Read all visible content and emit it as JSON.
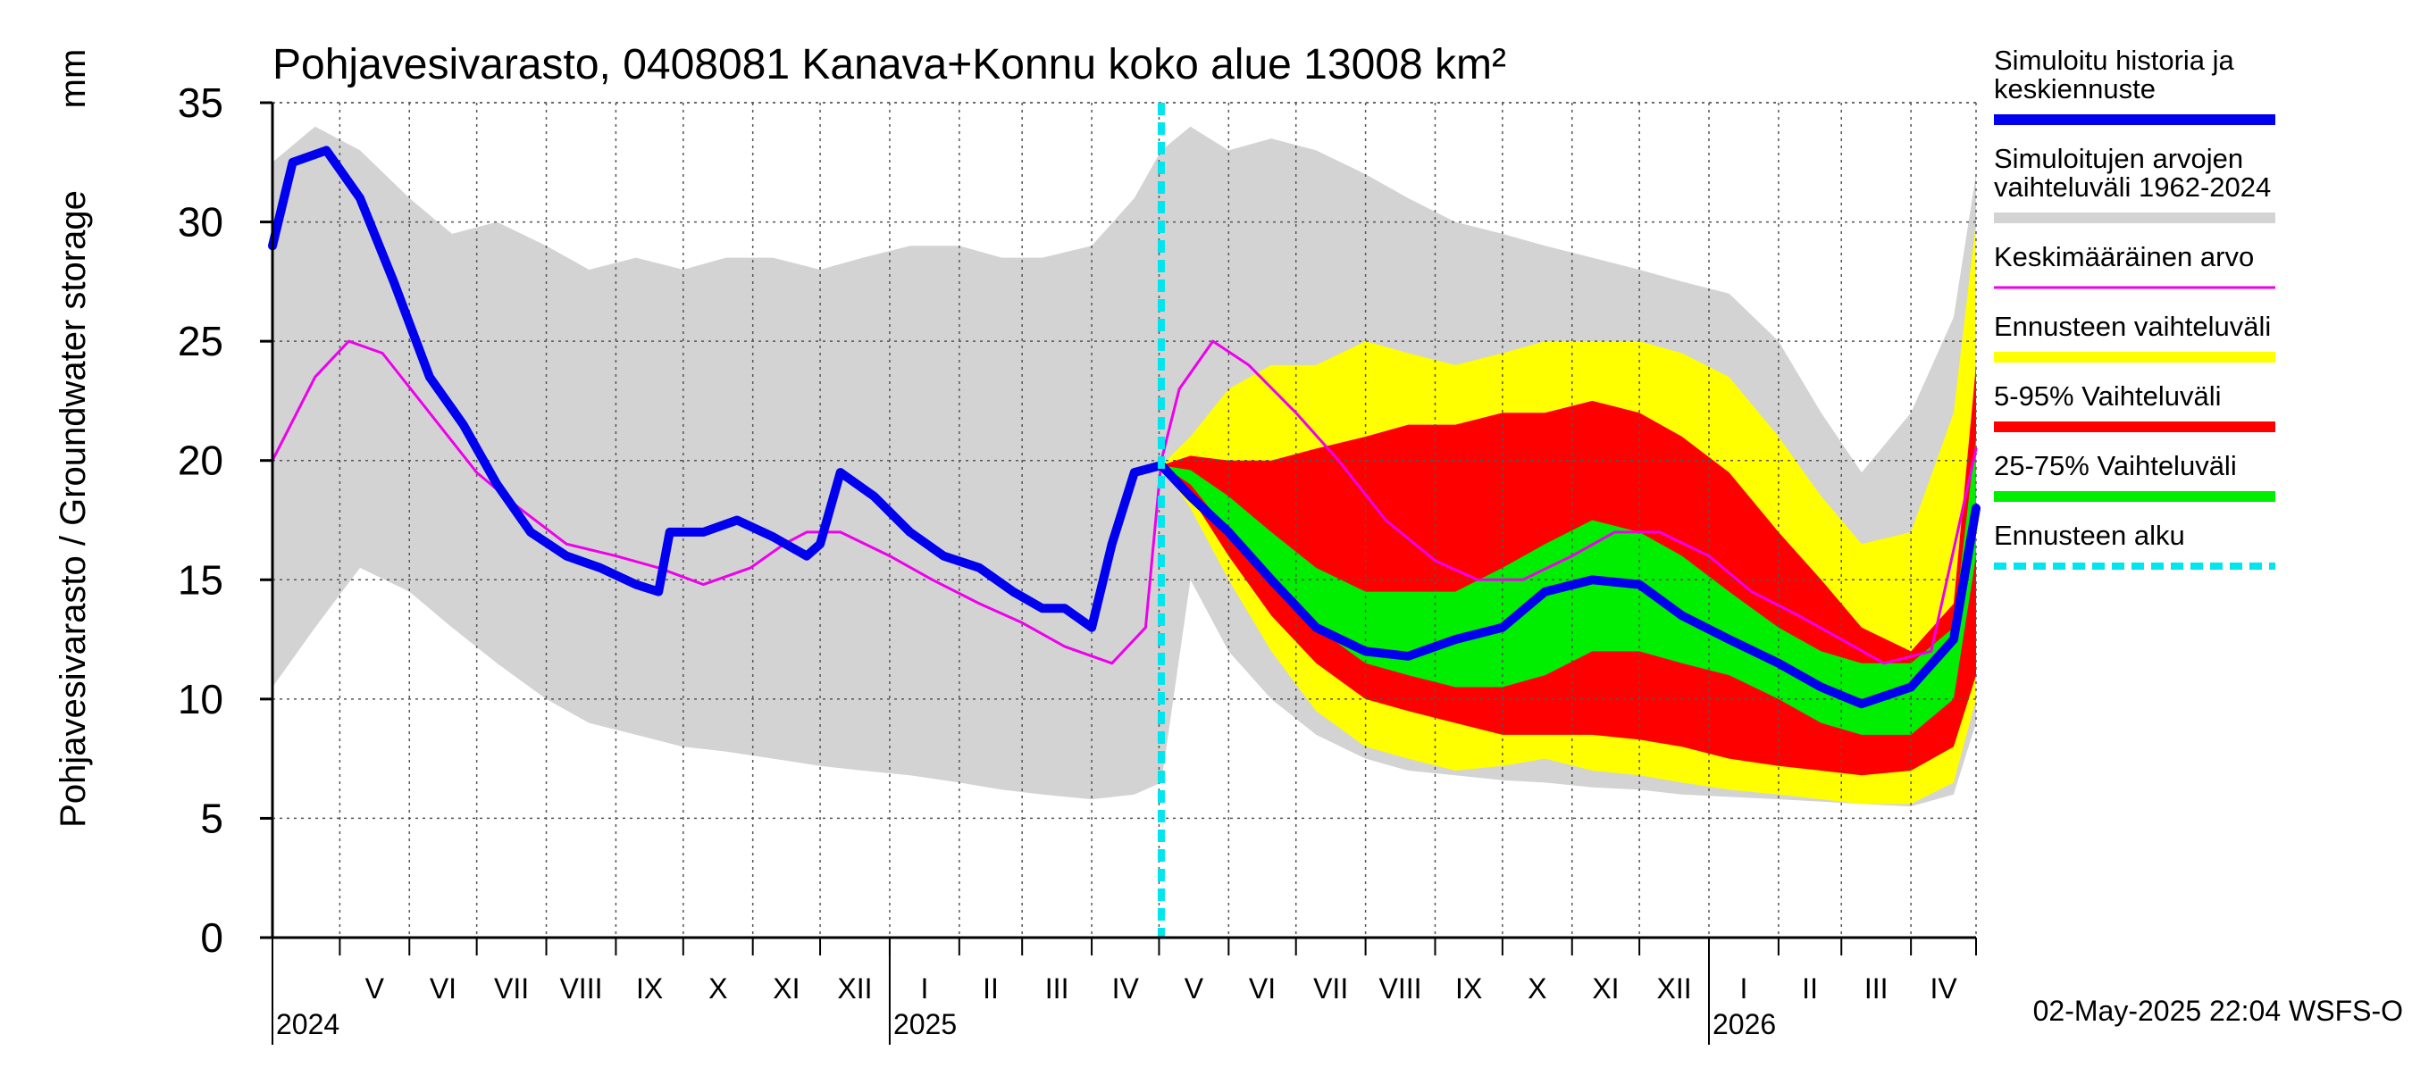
{
  "chart_data": {
    "type": "area",
    "title": "Pohjavesivarasto, 0408081 Kanava+Konnu koko alue 13008 km²",
    "ylabel": "Pohjavesivarasto / Groundwater storage",
    "yunit": "mm",
    "ylim": [
      0,
      35
    ],
    "yticks": [
      0,
      5,
      10,
      15,
      20,
      25,
      30,
      35
    ],
    "xlim": [
      "2024-04-01",
      "2026-04-30"
    ],
    "grid": true,
    "legend_position": "right",
    "forecast_start": "2025-05-02",
    "timestamp": "02-May-2025 22:04 WSFS-O",
    "x_months": [
      {
        "label": "V",
        "start": "2024-05-01"
      },
      {
        "label": "VI",
        "start": "2024-06-01"
      },
      {
        "label": "VII",
        "start": "2024-07-01"
      },
      {
        "label": "VIII",
        "start": "2024-08-01"
      },
      {
        "label": "IX",
        "start": "2024-09-01"
      },
      {
        "label": "X",
        "start": "2024-10-01"
      },
      {
        "label": "XI",
        "start": "2024-11-01"
      },
      {
        "label": "XII",
        "start": "2024-12-01"
      },
      {
        "label": "I",
        "start": "2025-01-01"
      },
      {
        "label": "II",
        "start": "2025-02-01"
      },
      {
        "label": "III",
        "start": "2025-03-01"
      },
      {
        "label": "IV",
        "start": "2025-04-01"
      },
      {
        "label": "V",
        "start": "2025-05-01"
      },
      {
        "label": "VI",
        "start": "2025-06-01"
      },
      {
        "label": "VII",
        "start": "2025-07-01"
      },
      {
        "label": "VIII",
        "start": "2025-08-01"
      },
      {
        "label": "IX",
        "start": "2025-09-01"
      },
      {
        "label": "X",
        "start": "2025-10-01"
      },
      {
        "label": "XI",
        "start": "2025-11-01"
      },
      {
        "label": "XII",
        "start": "2025-12-01"
      },
      {
        "label": "I",
        "start": "2026-01-01"
      },
      {
        "label": "II",
        "start": "2026-02-01"
      },
      {
        "label": "III",
        "start": "2026-03-01"
      },
      {
        "label": "IV",
        "start": "2026-04-01"
      }
    ],
    "x_years": [
      {
        "label": "2024",
        "date": "2024-04-01"
      },
      {
        "label": "2025",
        "date": "2025-01-01"
      },
      {
        "label": "2026",
        "date": "2026-01-01"
      }
    ],
    "legend": [
      {
        "label": "Simuloitu historia ja keskiennuste",
        "color": "#0000ee",
        "style": "thick"
      },
      {
        "label": "Simuloitujen arvojen vaihteluväli 1962-2024",
        "color": "#d3d3d3",
        "style": "thick"
      },
      {
        "label": "Keskimääräinen arvo",
        "color": "#ee00ee",
        "style": "thin"
      },
      {
        "label": "Ennusteen vaihteluväli",
        "color": "#ffff00",
        "style": "thick"
      },
      {
        "label": "5-95% Vaihteluväli",
        "color": "#ff0000",
        "style": "thick"
      },
      {
        "label": "25-75% Vaihteluväli",
        "color": "#00ee00",
        "style": "thick"
      },
      {
        "label": "Ennusteen alku",
        "color": "#00e5ee",
        "style": "dashed"
      }
    ],
    "series": [
      {
        "name": "Simuloitujen arvojen vaihteluväli 1962-2024",
        "kind": "band",
        "color": "#d3d3d3",
        "x": [
          "2024-04-01",
          "2024-04-20",
          "2024-05-10",
          "2024-06-01",
          "2024-06-20",
          "2024-07-10",
          "2024-08-01",
          "2024-08-20",
          "2024-09-10",
          "2024-10-01",
          "2024-10-20",
          "2024-11-10",
          "2024-12-01",
          "2024-12-20",
          "2025-01-10",
          "2025-02-01",
          "2025-02-20",
          "2025-03-10",
          "2025-04-01",
          "2025-04-20",
          "2025-05-02",
          "2025-05-15",
          "2025-06-01",
          "2025-06-20",
          "2025-07-10",
          "2025-08-01",
          "2025-08-20",
          "2025-09-10",
          "2025-10-01",
          "2025-10-20",
          "2025-11-10",
          "2025-12-01",
          "2025-12-20",
          "2026-01-10",
          "2026-02-01",
          "2026-02-20",
          "2026-03-10",
          "2026-04-01",
          "2026-04-20",
          "2026-04-30"
        ],
        "low": [
          10.5,
          13,
          15.5,
          14.5,
          13,
          11.5,
          10,
          9,
          8.5,
          8,
          7.8,
          7.5,
          7.2,
          7,
          6.8,
          6.5,
          6.2,
          6,
          5.8,
          6,
          6.5,
          15,
          12,
          10,
          8.5,
          7.5,
          7,
          6.8,
          6.6,
          6.5,
          6.3,
          6.2,
          6,
          5.9,
          5.8,
          5.7,
          5.6,
          5.5,
          6,
          9
        ],
        "high": [
          32.5,
          34,
          33,
          31,
          29.5,
          30,
          29,
          28,
          28.5,
          28,
          28.5,
          28.5,
          28,
          28.5,
          29,
          29,
          28.5,
          28.5,
          29,
          31,
          33,
          34,
          33,
          33.5,
          33,
          32,
          31,
          30,
          29.5,
          29,
          28.5,
          28,
          27.5,
          27,
          25,
          22,
          19.5,
          22,
          26,
          32
        ]
      },
      {
        "name": "Ennusteen vaihteluväli",
        "kind": "band",
        "color": "#ffff00",
        "x": [
          "2025-05-02",
          "2025-05-15",
          "2025-06-01",
          "2025-06-20",
          "2025-07-10",
          "2025-08-01",
          "2025-08-20",
          "2025-09-10",
          "2025-10-01",
          "2025-10-20",
          "2025-11-10",
          "2025-12-01",
          "2025-12-20",
          "2026-01-10",
          "2026-02-01",
          "2026-02-20",
          "2026-03-10",
          "2026-04-01",
          "2026-04-20",
          "2026-04-30"
        ],
        "low": [
          19.8,
          18,
          15,
          12,
          9.5,
          8,
          7.5,
          7,
          7.2,
          7.5,
          7,
          6.8,
          6.5,
          6.2,
          6,
          5.8,
          5.6,
          5.6,
          6.5,
          10
        ],
        "high": [
          19.8,
          21,
          23,
          24,
          24,
          25,
          24.5,
          24,
          24.5,
          25,
          25,
          25,
          24.5,
          23.5,
          21,
          18.5,
          16.5,
          17,
          22,
          30
        ]
      },
      {
        "name": "5-95% Vaihteluväli",
        "kind": "band",
        "color": "#ff0000",
        "x": [
          "2025-05-02",
          "2025-05-15",
          "2025-06-01",
          "2025-06-20",
          "2025-07-10",
          "2025-08-01",
          "2025-08-20",
          "2025-09-10",
          "2025-10-01",
          "2025-10-20",
          "2025-11-10",
          "2025-12-01",
          "2025-12-20",
          "2026-01-10",
          "2026-02-01",
          "2026-02-20",
          "2026-03-10",
          "2026-04-01",
          "2026-04-20",
          "2026-04-30"
        ],
        "low": [
          19.8,
          18.5,
          16,
          13.5,
          11.5,
          10,
          9.5,
          9,
          8.5,
          8.5,
          8.5,
          8.3,
          8,
          7.5,
          7.2,
          7,
          6.8,
          7,
          8,
          11
        ],
        "high": [
          19.8,
          20.2,
          20,
          20,
          20.5,
          21,
          21.5,
          21.5,
          22,
          22,
          22.5,
          22,
          21,
          19.5,
          17,
          15,
          13,
          12,
          14,
          24
        ]
      },
      {
        "name": "25-75% Vaihteluväli",
        "kind": "band",
        "color": "#00ee00",
        "x": [
          "2025-05-02",
          "2025-05-15",
          "2025-06-01",
          "2025-06-20",
          "2025-07-10",
          "2025-08-01",
          "2025-08-20",
          "2025-09-10",
          "2025-10-01",
          "2025-10-20",
          "2025-11-10",
          "2025-12-01",
          "2025-12-20",
          "2026-01-10",
          "2026-02-01",
          "2026-02-20",
          "2026-03-10",
          "2026-04-01",
          "2026-04-20",
          "2026-04-30"
        ],
        "low": [
          19.8,
          19,
          17,
          15,
          13,
          11.5,
          11,
          10.5,
          10.5,
          11,
          12,
          12,
          11.5,
          11,
          10,
          9,
          8.5,
          8.5,
          10,
          16
        ],
        "high": [
          19.8,
          19.6,
          18.5,
          17,
          15.5,
          14.5,
          14.5,
          14.5,
          15.5,
          16.5,
          17.5,
          17,
          16,
          14.5,
          13,
          12,
          11.5,
          11.5,
          13,
          21
        ]
      },
      {
        "name": "Keskimääräinen arvo",
        "kind": "line",
        "color": "#ee00ee",
        "width": 3,
        "x": [
          "2024-04-01",
          "2024-04-20",
          "2024-05-05",
          "2024-05-20",
          "2024-06-10",
          "2024-07-01",
          "2024-07-20",
          "2024-08-10",
          "2024-09-01",
          "2024-09-20",
          "2024-10-10",
          "2024-10-31",
          "2024-11-15",
          "2024-11-25",
          "2024-12-10",
          "2025-01-01",
          "2025-01-20",
          "2025-02-10",
          "2025-03-01",
          "2025-03-20",
          "2025-04-10",
          "2025-04-25",
          "2025-05-02",
          "2025-05-10",
          "2025-05-25",
          "2025-06-10",
          "2025-07-01",
          "2025-07-20",
          "2025-08-10",
          "2025-09-01",
          "2025-09-20",
          "2025-10-10",
          "2025-11-01",
          "2025-11-20",
          "2025-12-10",
          "2026-01-01",
          "2026-01-20",
          "2026-02-10",
          "2026-03-01",
          "2026-03-20",
          "2026-04-10",
          "2026-04-30"
        ],
        "y": [
          20,
          23.5,
          25,
          24.5,
          22,
          19.5,
          18,
          16.5,
          16,
          15.5,
          14.8,
          15.5,
          16.5,
          17,
          17,
          16,
          15,
          14,
          13.2,
          12.2,
          11.5,
          13,
          20,
          23,
          25,
          24,
          22,
          20,
          17.5,
          15.8,
          15,
          15,
          16,
          17,
          17,
          16,
          14.5,
          13.5,
          12.5,
          11.5,
          12,
          20.5
        ]
      },
      {
        "name": "Simuloitu historia ja keskiennuste",
        "kind": "line",
        "color": "#0000ee",
        "width": 10,
        "x": [
          "2024-04-01",
          "2024-04-10",
          "2024-04-25",
          "2024-05-10",
          "2024-05-25",
          "2024-06-10",
          "2024-06-25",
          "2024-07-10",
          "2024-07-25",
          "2024-08-10",
          "2024-08-25",
          "2024-09-10",
          "2024-09-20",
          "2024-09-25",
          "2024-10-10",
          "2024-10-25",
          "2024-11-10",
          "2024-11-25",
          "2024-12-01",
          "2024-12-10",
          "2024-12-25",
          "2025-01-10",
          "2025-01-25",
          "2025-02-10",
          "2025-02-25",
          "2025-03-10",
          "2025-03-20",
          "2025-04-01",
          "2025-04-10",
          "2025-04-20",
          "2025-05-02",
          "2025-05-15",
          "2025-06-01",
          "2025-06-20",
          "2025-07-10",
          "2025-08-01",
          "2025-08-20",
          "2025-09-10",
          "2025-10-01",
          "2025-10-20",
          "2025-11-10",
          "2025-12-01",
          "2025-12-20",
          "2026-01-10",
          "2026-02-01",
          "2026-02-20",
          "2026-03-10",
          "2026-04-01",
          "2026-04-20",
          "2026-04-30"
        ],
        "y": [
          29,
          32.5,
          33,
          31,
          27.5,
          23.5,
          21.5,
          19,
          17,
          16,
          15.5,
          14.8,
          14.5,
          17,
          17,
          17.5,
          16.8,
          16,
          16.5,
          19.5,
          18.5,
          17,
          16,
          15.5,
          14.5,
          13.8,
          13.8,
          13,
          16.5,
          19.5,
          19.8,
          18.5,
          17,
          15,
          13,
          12,
          11.8,
          12.5,
          13,
          14.5,
          15,
          14.8,
          13.5,
          12.5,
          11.5,
          10.5,
          9.8,
          10.5,
          12.5,
          18
        ]
      },
      {
        "name": "Ennusteen alku",
        "kind": "vline",
        "color": "#00e5ee",
        "x": "2025-05-02"
      }
    ]
  }
}
